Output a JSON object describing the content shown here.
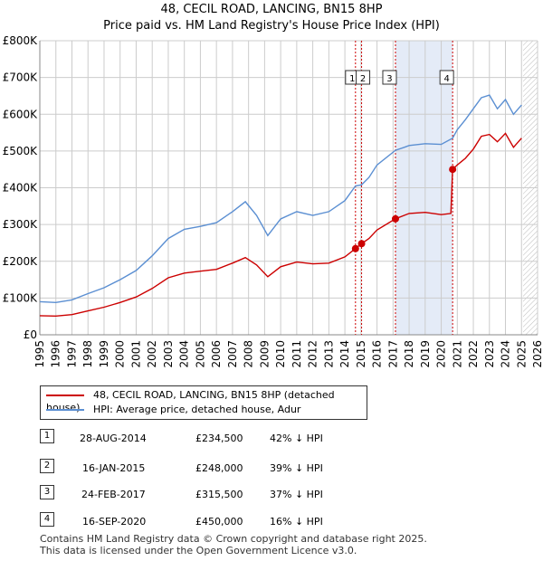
{
  "header": {
    "title": "48, CECIL ROAD, LANCING, BN15 8HP",
    "subtitle": "Price paid vs. HM Land Registry's House Price Index (HPI)"
  },
  "colors": {
    "property": "#cc0000",
    "hpi": "#5b8fd2",
    "grid": "#cccccc",
    "highlight": "#dde6f5",
    "marker_line": "#cc0000"
  },
  "chart_data": {
    "type": "line",
    "title": "Price paid vs. HM Land Registry's House Price Index (HPI)",
    "xlim": [
      1995,
      2026
    ],
    "ylim": [
      0,
      800000
    ],
    "x_ticks": [
      "1995",
      "1996",
      "1997",
      "1998",
      "1999",
      "2000",
      "2001",
      "2002",
      "2003",
      "2004",
      "2005",
      "2006",
      "2007",
      "2008",
      "2009",
      "2010",
      "2011",
      "2012",
      "2013",
      "2014",
      "2015",
      "2016",
      "2017",
      "2018",
      "2019",
      "2020",
      "2021",
      "2022",
      "2023",
      "2024",
      "2025",
      "2026"
    ],
    "y_ticks": [
      {
        "value": 0,
        "label": "£0"
      },
      {
        "value": 100000,
        "label": "£100K"
      },
      {
        "value": 200000,
        "label": "£200K"
      },
      {
        "value": 300000,
        "label": "£300K"
      },
      {
        "value": 400000,
        "label": "£400K"
      },
      {
        "value": 500000,
        "label": "£500K"
      },
      {
        "value": 600000,
        "label": "£600K"
      },
      {
        "value": 700000,
        "label": "£700K"
      },
      {
        "value": 800000,
        "label": "£800K"
      }
    ],
    "highlight_span": [
      2017.15,
      2020.71
    ],
    "series": [
      {
        "name": "48, CECIL ROAD, LANCING, BN15 8HP (detached house)",
        "color": "#cc0000",
        "points": [
          [
            1995,
            52000
          ],
          [
            1996,
            51000
          ],
          [
            1997,
            55000
          ],
          [
            1998,
            65000
          ],
          [
            1999,
            75000
          ],
          [
            2000,
            88000
          ],
          [
            2001,
            103000
          ],
          [
            2002,
            126000
          ],
          [
            2003,
            155000
          ],
          [
            2004,
            168000
          ],
          [
            2005,
            173000
          ],
          [
            2006,
            178000
          ],
          [
            2007,
            195000
          ],
          [
            2007.8,
            210000
          ],
          [
            2008.5,
            190000
          ],
          [
            2009.2,
            158000
          ],
          [
            2010,
            185000
          ],
          [
            2011,
            198000
          ],
          [
            2012,
            193000
          ],
          [
            2013,
            195000
          ],
          [
            2014,
            212000
          ],
          [
            2014.66,
            234500
          ],
          [
            2015.04,
            248000
          ],
          [
            2015.5,
            262000
          ],
          [
            2016,
            285000
          ],
          [
            2017.15,
            315500
          ],
          [
            2017.7,
            325000
          ],
          [
            2018,
            330000
          ],
          [
            2019,
            333000
          ],
          [
            2020,
            327000
          ],
          [
            2020.6,
            330000
          ],
          [
            2020.71,
            450000
          ],
          [
            2021,
            462000
          ],
          [
            2021.5,
            480000
          ],
          [
            2022,
            505000
          ],
          [
            2022.5,
            540000
          ],
          [
            2023,
            545000
          ],
          [
            2023.5,
            525000
          ],
          [
            2024,
            548000
          ],
          [
            2024.5,
            510000
          ],
          [
            2025,
            535000
          ]
        ]
      },
      {
        "name": "HPI: Average price, detached house, Adur",
        "color": "#5b8fd2",
        "points": [
          [
            1995,
            90000
          ],
          [
            1996,
            88000
          ],
          [
            1997,
            95000
          ],
          [
            1998,
            112000
          ],
          [
            1999,
            128000
          ],
          [
            2000,
            150000
          ],
          [
            2001,
            175000
          ],
          [
            2002,
            215000
          ],
          [
            2003,
            262000
          ],
          [
            2004,
            287000
          ],
          [
            2005,
            295000
          ],
          [
            2006,
            305000
          ],
          [
            2007,
            335000
          ],
          [
            2007.8,
            362000
          ],
          [
            2008.5,
            325000
          ],
          [
            2009.2,
            270000
          ],
          [
            2010,
            315000
          ],
          [
            2011,
            335000
          ],
          [
            2012,
            325000
          ],
          [
            2013,
            335000
          ],
          [
            2014,
            365000
          ],
          [
            2014.66,
            405000
          ],
          [
            2015.04,
            408000
          ],
          [
            2015.5,
            428000
          ],
          [
            2016,
            462000
          ],
          [
            2017.15,
            502000
          ],
          [
            2017.7,
            510000
          ],
          [
            2018,
            515000
          ],
          [
            2019,
            520000
          ],
          [
            2020,
            518000
          ],
          [
            2020.71,
            535000
          ],
          [
            2021,
            558000
          ],
          [
            2021.5,
            585000
          ],
          [
            2022,
            615000
          ],
          [
            2022.5,
            645000
          ],
          [
            2023,
            652000
          ],
          [
            2023.5,
            615000
          ],
          [
            2024,
            640000
          ],
          [
            2024.5,
            600000
          ],
          [
            2025,
            625000
          ]
        ]
      }
    ],
    "sales": [
      {
        "label": "1",
        "x": 2014.66,
        "value": 234500
      },
      {
        "label": "2",
        "x": 2015.04,
        "value": 248000
      },
      {
        "label": "3",
        "x": 2017.15,
        "value": 315500
      },
      {
        "label": "4",
        "x": 2020.71,
        "value": 450000
      }
    ]
  },
  "legend": {
    "property_label": "48, CECIL ROAD, LANCING, BN15 8HP (detached house)",
    "hpi_label": "HPI: Average price, detached house, Adur"
  },
  "table": [
    {
      "num": "1",
      "date": "28-AUG-2014",
      "price": "£234,500",
      "diff": "42% ↓ HPI"
    },
    {
      "num": "2",
      "date": "16-JAN-2015",
      "price": "£248,000",
      "diff": "39% ↓ HPI"
    },
    {
      "num": "3",
      "date": "24-FEB-2017",
      "price": "£315,500",
      "diff": "37% ↓ HPI"
    },
    {
      "num": "4",
      "date": "16-SEP-2020",
      "price": "£450,000",
      "diff": "16% ↓ HPI"
    }
  ],
  "footer": {
    "line1": "Contains HM Land Registry data © Crown copyright and database right 2025.",
    "line2": "This data is licensed under the Open Government Licence v3.0."
  }
}
